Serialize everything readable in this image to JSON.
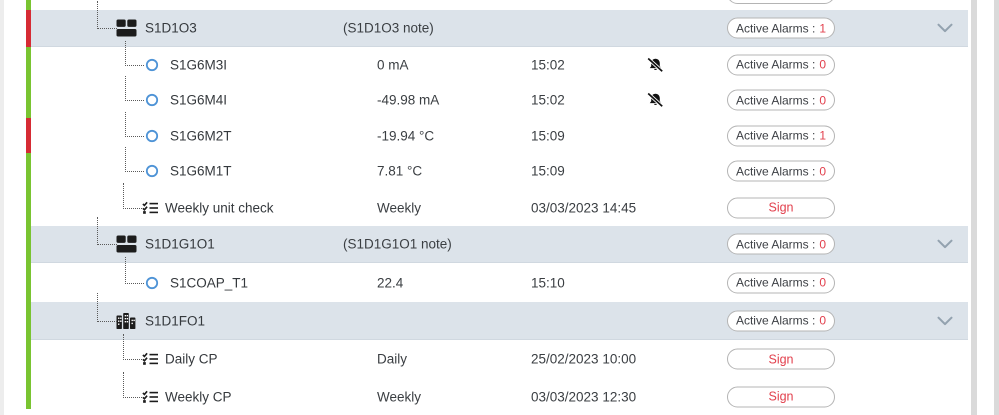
{
  "strings": {
    "active_alarms_prefix": "Active Alarms :",
    "sign_label": "Sign"
  },
  "colors": {
    "status_red": "#d62b34",
    "status_green": "#79c431",
    "alarm_count_red": "#e2404d",
    "highlight_row": "#dce3ea",
    "circle_blue": "#4e93d6"
  },
  "rows": [
    {
      "kind": "partial",
      "status": "green"
    },
    {
      "kind": "group",
      "name": "S1D1O3",
      "note": "(S1D1O3 note)",
      "icon": "unit-stack-icon",
      "badge_count": "1",
      "chevron": true,
      "highlight": true,
      "status": "red"
    },
    {
      "kind": "sensor",
      "name": "S1G6M3I",
      "value": "0 mA",
      "time": "15:02",
      "muted": true,
      "icon": "circle-status-icon",
      "badge_count": "0",
      "status": "green"
    },
    {
      "kind": "sensor",
      "name": "S1G6M4I",
      "value": "-49.98 mA",
      "time": "15:02",
      "muted": true,
      "icon": "circle-status-icon",
      "badge_count": "0",
      "status": "green"
    },
    {
      "kind": "sensor",
      "name": "S1G6M2T",
      "value": "-19.94 °C",
      "time": "15:09",
      "icon": "circle-status-icon",
      "badge_count": "1",
      "status": "red"
    },
    {
      "kind": "sensor",
      "name": "S1G6M1T",
      "value": "7.81 °C",
      "time": "15:09",
      "icon": "circle-status-icon",
      "badge_count": "0",
      "status": "green"
    },
    {
      "kind": "task",
      "name": "Weekly unit check",
      "value": "Weekly",
      "time": "03/03/2023 14:45",
      "icon": "checklist-icon",
      "action": "sign",
      "status": "green"
    },
    {
      "kind": "group",
      "name": "S1D1G1O1",
      "note": "(S1D1G1O1 note)",
      "icon": "unit-stack-icon",
      "badge_count": "0",
      "chevron": true,
      "highlight": true,
      "status": "green"
    },
    {
      "kind": "sensor",
      "name": "S1COAP_T1",
      "value": "22.4",
      "time": "15:10",
      "icon": "circle-status-icon",
      "badge_count": "0",
      "status": "green"
    },
    {
      "kind": "group",
      "name": "S1D1FO1",
      "icon": "city-icon",
      "badge_count": "0",
      "chevron": true,
      "highlight": true,
      "status": "green"
    },
    {
      "kind": "task",
      "name": "Daily CP",
      "value": "Daily",
      "time": "25/02/2023 10:00",
      "icon": "checklist-icon",
      "action": "sign",
      "status": "green"
    },
    {
      "kind": "task",
      "name": "Weekly CP",
      "value": "Weekly",
      "time": "03/03/2023 12:30",
      "icon": "checklist-icon",
      "action": "sign",
      "status": "green"
    }
  ]
}
